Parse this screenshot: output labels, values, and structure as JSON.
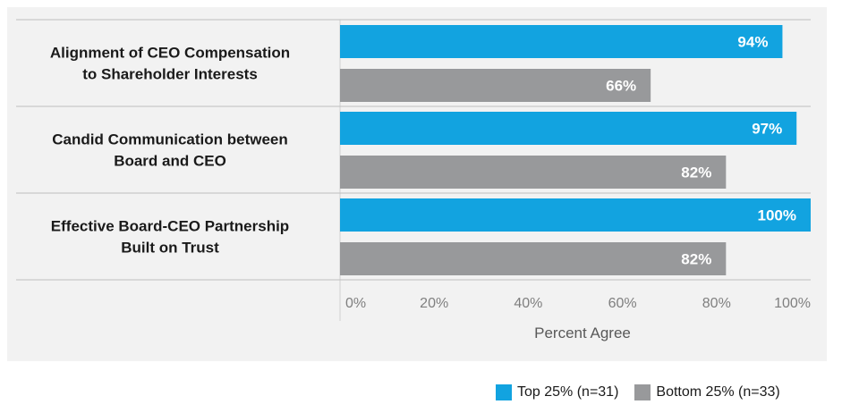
{
  "chart_data": {
    "type": "bar",
    "orientation": "horizontal",
    "categories": [
      [
        "Alignment of CEO Compensation",
        "to Shareholder Interests"
      ],
      [
        "Candid Communication between",
        "Board and CEO"
      ],
      [
        "Effective Board-CEO Partnership",
        "Built on Trust"
      ]
    ],
    "series": [
      {
        "name": "Top 25% (n=31)",
        "values": [
          94,
          97,
          100
        ],
        "labels": [
          "94%",
          "97%",
          "100%"
        ],
        "color": "#12a3e0"
      },
      {
        "name": "Bottom 25% (n=33)",
        "values": [
          66,
          82,
          82
        ],
        "labels": [
          "66%",
          "82%",
          "82%"
        ],
        "color": "#98999b"
      }
    ],
    "xlabel": "Percent Agree",
    "xlim": [
      0,
      100
    ],
    "xticks": [
      0,
      20,
      40,
      60,
      80,
      100
    ],
    "xtick_labels": [
      "0%",
      "20%",
      "40%",
      "60%",
      "80%",
      "100%"
    ],
    "grid": false,
    "legend_position": "bottom-right"
  }
}
